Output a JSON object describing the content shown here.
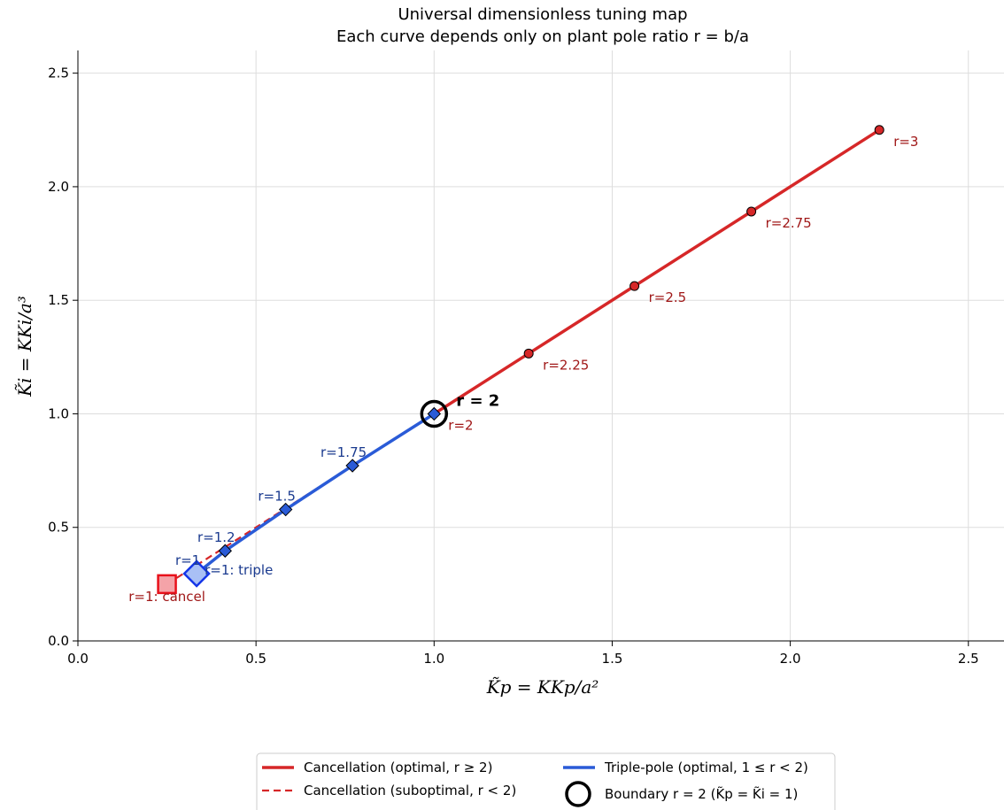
{
  "chart_data": {
    "type": "line",
    "title": "Universal dimensionless tuning map",
    "subtitle": "Each curve depends only on plant pole ratio r = b/a",
    "xlabel": "K̃p = KKp/a²",
    "ylabel": "K̃i = KKi/a³",
    "xlim": [
      0.0,
      2.6
    ],
    "ylim": [
      0.0,
      2.6
    ],
    "xticks": [
      "0.0",
      "0.5",
      "1.0",
      "1.5",
      "2.0",
      "2.5"
    ],
    "yticks": [
      "0.0",
      "0.5",
      "1.0",
      "1.5",
      "2.0",
      "2.5"
    ],
    "grid": true,
    "legend_position": "bottom-center",
    "colors": {
      "cancellation": "#d62728",
      "cancellation_label": "#a01818",
      "triple": "#2a5bd7",
      "triple_label": "#1a3a8f",
      "boundary": "#000000"
    },
    "series": [
      {
        "name": "Cancellation (optimal, r ≥ 2)",
        "style": "solid",
        "x": [
          1.0,
          1.2656,
          1.5625,
          1.8906,
          2.25
        ],
        "y": [
          1.0,
          1.2656,
          1.5625,
          1.8906,
          2.25
        ],
        "markers": [
          {
            "r_label": "r=2",
            "x": 1.0,
            "y": 1.0
          },
          {
            "r_label": "r=2.25",
            "x": 1.2656,
            "y": 1.2656
          },
          {
            "r_label": "r=2.5",
            "x": 1.5625,
            "y": 1.5625
          },
          {
            "r_label": "r=2.75",
            "x": 1.8906,
            "y": 1.8906
          },
          {
            "r_label": "r=3",
            "x": 2.25,
            "y": 2.25
          }
        ]
      },
      {
        "name": "Cancellation (suboptimal, r < 2)",
        "style": "dashed",
        "x": [
          0.25,
          1.0
        ],
        "y": [
          0.25,
          1.0
        ]
      },
      {
        "name": "Triple-pole (optimal, 1 ≤ r < 2)",
        "style": "solid",
        "x": [
          0.3333,
          0.4133,
          0.5833,
          0.7708,
          1.0
        ],
        "y": [
          0.2963,
          0.3967,
          0.5787,
          0.7717,
          1.0
        ],
        "markers": [
          {
            "r_label": "r=1",
            "x": 0.3333,
            "y": 0.2963
          },
          {
            "r_label": "r=1.2",
            "x": 0.4133,
            "y": 0.3967
          },
          {
            "r_label": "r=1.5",
            "x": 0.5833,
            "y": 0.5787
          },
          {
            "r_label": "r=1.75",
            "x": 0.7708,
            "y": 0.7717
          }
        ]
      }
    ],
    "endpoints": {
      "cancel": {
        "label": "r=1: cancel",
        "x": 0.25,
        "y": 0.25
      },
      "triple": {
        "label": "r=1: triple",
        "x": 0.3333,
        "y": 0.2963
      }
    },
    "boundary": {
      "label": "r = 2",
      "x": 1.0,
      "y": 1.0
    },
    "legend": [
      {
        "label": "Cancellation  (optimal, r ≥ 2)",
        "kind": "solid-red"
      },
      {
        "label": "Triple-pole  (optimal, 1 ≤ r < 2)",
        "kind": "solid-blue"
      },
      {
        "label": "Cancellation  (suboptimal, r < 2)",
        "kind": "dashed-red"
      },
      {
        "label": "Boundary  r = 2  (K̃p = K̃i = 1)",
        "kind": "circle"
      }
    ]
  }
}
